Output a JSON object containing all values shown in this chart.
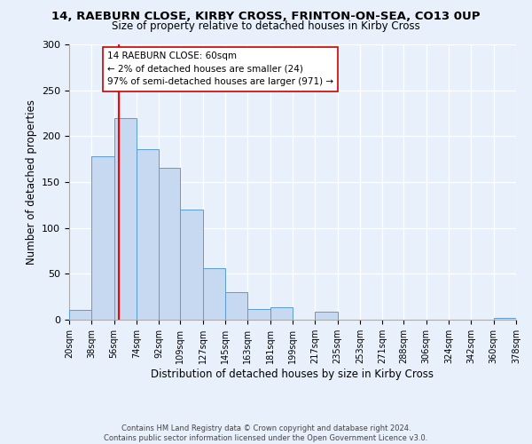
{
  "title": "14, RAEBURN CLOSE, KIRBY CROSS, FRINTON-ON-SEA, CO13 0UP",
  "subtitle": "Size of property relative to detached houses in Kirby Cross",
  "xlabel": "Distribution of detached houses by size in Kirby Cross",
  "ylabel": "Number of detached properties",
  "bin_edges": [
    20,
    38,
    56,
    74,
    92,
    109,
    127,
    145,
    163,
    181,
    199,
    217,
    235,
    253,
    271,
    288,
    306,
    324,
    342,
    360,
    378
  ],
  "bar_heights": [
    11,
    178,
    220,
    186,
    165,
    120,
    56,
    30,
    12,
    14,
    0,
    9,
    0,
    0,
    0,
    0,
    0,
    0,
    0,
    2
  ],
  "bar_color": "#c6d9f1",
  "bar_edge_color": "#5b9bd5",
  "vline_x": 60,
  "vline_color": "#ff0000",
  "annotation_line1": "14 RAEBURN CLOSE: 60sqm",
  "annotation_line2": "← 2% of detached houses are smaller (24)",
  "annotation_line3": "97% of semi-detached houses are larger (971) →",
  "annotation_box_color": "#ffffff",
  "annotation_box_edge": "#cc0000",
  "ylim": [
    0,
    300
  ],
  "yticks": [
    0,
    50,
    100,
    150,
    200,
    250,
    300
  ],
  "tick_labels": [
    "20sqm",
    "38sqm",
    "56sqm",
    "74sqm",
    "92sqm",
    "109sqm",
    "127sqm",
    "145sqm",
    "163sqm",
    "181sqm",
    "199sqm",
    "217sqm",
    "235sqm",
    "253sqm",
    "271sqm",
    "288sqm",
    "306sqm",
    "324sqm",
    "342sqm",
    "360sqm",
    "378sqm"
  ],
  "footer": "Contains HM Land Registry data © Crown copyright and database right 2024.\nContains public sector information licensed under the Open Government Licence v3.0.",
  "bg_color": "#e8f0fb",
  "plot_bg_color": "#e8f0fb",
  "grid_color": "#ffffff",
  "title_fontsize": 9.5,
  "subtitle_fontsize": 8.5
}
